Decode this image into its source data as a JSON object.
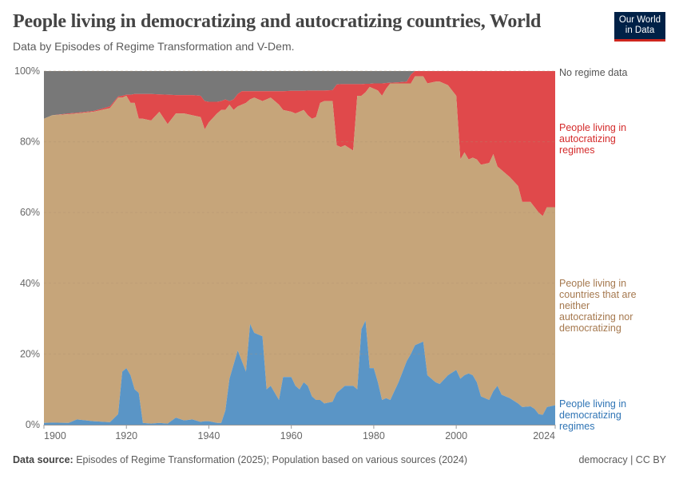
{
  "header": {
    "title": "People living in democratizing and autocratizing countries, World",
    "subtitle": "Data by Episodes of Regime Transformation and V-Dem.",
    "logo_text": "Our World in Data"
  },
  "footer": {
    "source_label": "Data source:",
    "source_text": "Episodes of Regime Transformation (2025); Population based on various sources (2024)",
    "license": "democracy | CC BY"
  },
  "colors": {
    "democratizing": "#5a95c6",
    "neither": "#c6a57a",
    "autocratizing": "#e0494b",
    "no_data": "#787878"
  },
  "chart_data": {
    "type": "area",
    "stacked": true,
    "title": "People living in democratizing and autocratizing countries, World",
    "xlim": [
      1900,
      2024
    ],
    "ylim": [
      0,
      100
    ],
    "grid": "horizontal dashed",
    "legend": "right (inline labels)",
    "x_ticks": [
      "1900",
      "1920",
      "1940",
      "1960",
      "1980",
      "2000",
      "2024"
    ],
    "y_ticks": [
      "0%",
      "20%",
      "40%",
      "60%",
      "80%",
      "100%"
    ],
    "x": [
      1900,
      1902,
      1906,
      1908,
      1912,
      1916,
      1918,
      1919,
      1920,
      1921,
      1922,
      1923,
      1924,
      1926,
      1928,
      1930,
      1932,
      1934,
      1936,
      1938,
      1939,
      1940,
      1942,
      1943,
      1944,
      1945,
      1946,
      1947,
      1948,
      1949,
      1950,
      1951,
      1953,
      1954,
      1955,
      1957,
      1958,
      1960,
      1961,
      1962,
      1963,
      1964,
      1965,
      1966,
      1967,
      1968,
      1970,
      1971,
      1972,
      1973,
      1975,
      1976,
      1977,
      1978,
      1979,
      1980,
      1981,
      1982,
      1983,
      1984,
      1986,
      1988,
      1989,
      1990,
      1992,
      1993,
      1995,
      1996,
      1998,
      2000,
      2001,
      2002,
      2003,
      2004,
      2005,
      2006,
      2008,
      2009,
      2010,
      2011,
      2013,
      2015,
      2016,
      2018,
      2019,
      2020,
      2021,
      2022,
      2024
    ],
    "series": [
      {
        "name": "People living in democratizing regimes",
        "values": [
          0.5,
          0.6,
          0.5,
          1.5,
          1,
          0.7,
          3,
          15,
          16,
          14,
          10,
          9,
          0.5,
          0.3,
          0.5,
          0.3,
          2,
          1.2,
          1.5,
          0.8,
          1,
          1,
          0.5,
          0.5,
          4,
          13,
          17,
          21,
          18,
          15,
          28.5,
          26,
          25,
          10,
          11,
          7,
          13.5,
          13.5,
          11,
          10,
          12,
          11,
          8,
          7,
          7,
          6,
          6.5,
          9,
          10,
          11,
          11,
          10,
          27,
          29.5,
          16,
          16,
          12,
          7,
          7.5,
          7,
          12,
          18,
          20,
          22.5,
          23.5,
          14,
          12,
          11.5,
          14,
          15.5,
          13,
          14,
          14.5,
          14,
          12,
          8,
          7,
          9.5,
          11,
          8.5,
          7.5,
          6,
          5,
          5.2,
          4.5,
          3,
          2.8,
          5,
          5.5
        ]
      },
      {
        "name": "People living in countries that are neither autocratizing nor democratizing",
        "values": [
          86,
          86.9,
          87.3,
          86.5,
          87.5,
          88.8,
          89.5,
          77.5,
          77,
          77,
          81,
          77.5,
          86,
          85.7,
          88,
          84.7,
          86,
          86.8,
          86,
          86.2,
          82.5,
          84.5,
          87.5,
          88.5,
          85,
          77.5,
          72,
          69,
          72.5,
          76,
          63.5,
          66.5,
          66.5,
          82,
          81.5,
          83.5,
          75.5,
          75,
          77,
          78.5,
          77,
          76.5,
          78.5,
          80,
          84,
          85.5,
          85,
          70,
          68.5,
          68,
          66.5,
          83,
          66,
          64.5,
          79.5,
          79,
          82.5,
          86,
          87.5,
          89.5,
          84.5,
          78.5,
          76.5,
          76,
          75,
          82.5,
          85,
          85.5,
          82,
          77.5,
          62,
          63,
          60.5,
          61.5,
          63,
          65.5,
          67,
          67,
          62,
          63.5,
          62.5,
          61.5,
          58,
          57.8,
          57,
          57,
          56.2,
          56.5,
          56
        ]
      },
      {
        "name": "People living in autocratizing regimes",
        "values": [
          0,
          0,
          0.2,
          0.2,
          0.2,
          0.5,
          0.3,
          0.5,
          0.3,
          2.3,
          2.5,
          7,
          7,
          7.5,
          4.9,
          8.3,
          5.2,
          5.2,
          5.7,
          6,
          8,
          5.8,
          3.3,
          2.5,
          3,
          1,
          3,
          3.5,
          3.8,
          3.3,
          2.3,
          1.8,
          2.8,
          2.3,
          1.8,
          3.8,
          5.3,
          5.9,
          6.4,
          5.9,
          5.4,
          7,
          8,
          7.5,
          3.5,
          3,
          3.1,
          17.2,
          17.8,
          17.3,
          18.8,
          3.3,
          3.3,
          2.4,
          0.9,
          1.5,
          2,
          3.5,
          1.6,
          0.2,
          0.3,
          0.5,
          2.5,
          1.5,
          1.5,
          3.5,
          3,
          3,
          4,
          7,
          25,
          23,
          25,
          24.5,
          25,
          26.5,
          26,
          23.5,
          27,
          28,
          30,
          32.5,
          37,
          37,
          38.5,
          40,
          41,
          38.5,
          38.5
        ]
      },
      {
        "name": "No regime data",
        "values": "remainder to 100%"
      }
    ],
    "labels": {
      "no_data": "No regime data",
      "autocratizing": "People living in autocratizing regimes",
      "neither": "People living in countries that are neither autocratizing nor democratizing",
      "democratizing": "People living in democratizing regimes"
    }
  }
}
